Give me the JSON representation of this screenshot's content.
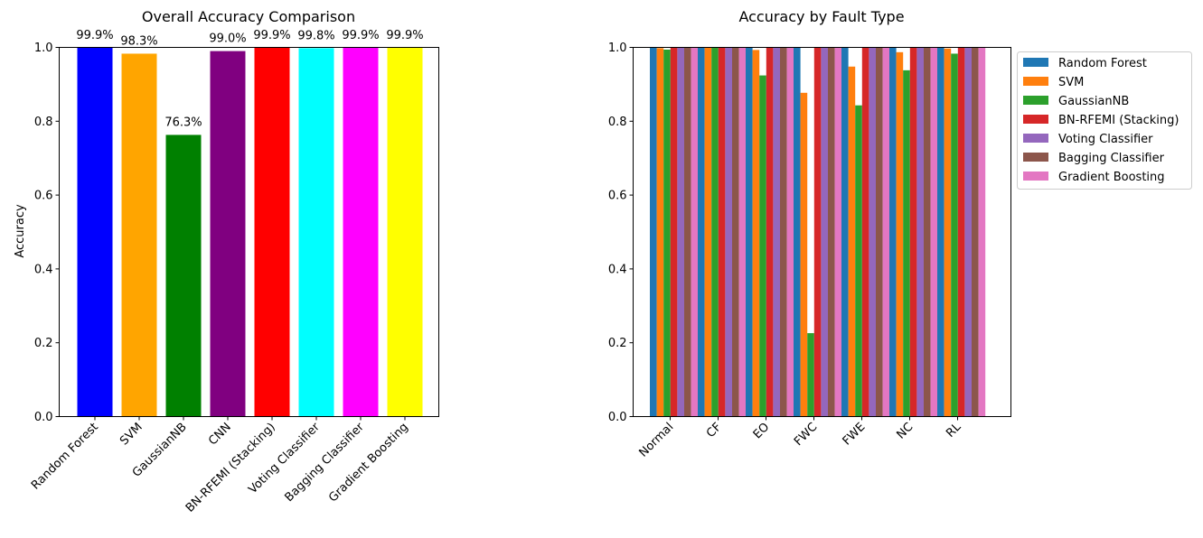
{
  "chart_data": [
    {
      "type": "bar",
      "title": "Overall Accuracy Comparison",
      "xlabel": "",
      "ylabel": "Accuracy",
      "ylim": [
        0,
        1
      ],
      "yticks": [
        "0.0",
        "0.2",
        "0.4",
        "0.6",
        "0.8",
        "1.0"
      ],
      "categories": [
        "Random Forest",
        "SVM",
        "GaussianNB",
        "CNN",
        "BN-RFEMI (Stacking)",
        "Voting Classifier",
        "Bagging Classifier",
        "Gradient Boosting"
      ],
      "values": [
        0.999,
        0.983,
        0.763,
        0.99,
        0.999,
        0.998,
        0.999,
        0.999
      ],
      "value_labels": [
        "99.9%",
        "98.3%",
        "76.3%",
        "99.0%",
        "99.9%",
        "99.8%",
        "99.9%",
        "99.9%"
      ],
      "colors": [
        "#0000ff",
        "#ffa500",
        "#008000",
        "#800080",
        "#ff0000",
        "#00ffff",
        "#ff00ff",
        "#ffff00"
      ]
    },
    {
      "type": "bar",
      "title": "Accuracy by Fault Type",
      "xlabel": "",
      "ylabel": "",
      "ylim": [
        0,
        1
      ],
      "yticks": [
        "0.0",
        "0.2",
        "0.4",
        "0.6",
        "0.8",
        "1.0"
      ],
      "categories": [
        "Normal",
        "CF",
        "EO",
        "FWC",
        "FWE",
        "NC",
        "RL"
      ],
      "legend_position": "outside-upper-right",
      "series": [
        {
          "name": "Random Forest",
          "color": "#1f77b4",
          "values": [
            1.0,
            1.0,
            1.0,
            1.0,
            1.0,
            1.0,
            1.0
          ]
        },
        {
          "name": "SVM",
          "color": "#ff7f0e",
          "values": [
            0.998,
            1.0,
            0.993,
            0.877,
            0.948,
            0.987,
            0.997
          ]
        },
        {
          "name": "GaussianNB",
          "color": "#2ca02c",
          "values": [
            0.994,
            0.999,
            0.924,
            0.226,
            0.843,
            0.938,
            0.983
          ]
        },
        {
          "name": "BN-RFEMI (Stacking)",
          "color": "#d62728",
          "values": [
            1.0,
            1.0,
            1.0,
            1.0,
            1.0,
            1.0,
            1.0
          ]
        },
        {
          "name": "Voting Classifier",
          "color": "#9467bd",
          "values": [
            1.0,
            1.0,
            1.0,
            1.0,
            1.0,
            1.0,
            1.0
          ]
        },
        {
          "name": "Bagging Classifier",
          "color": "#8c564b",
          "values": [
            1.0,
            1.0,
            1.0,
            1.0,
            1.0,
            1.0,
            1.0
          ]
        },
        {
          "name": "Gradient Boosting",
          "color": "#e377c2",
          "values": [
            1.0,
            1.0,
            1.0,
            1.0,
            1.0,
            1.0,
            1.0
          ]
        }
      ]
    }
  ]
}
